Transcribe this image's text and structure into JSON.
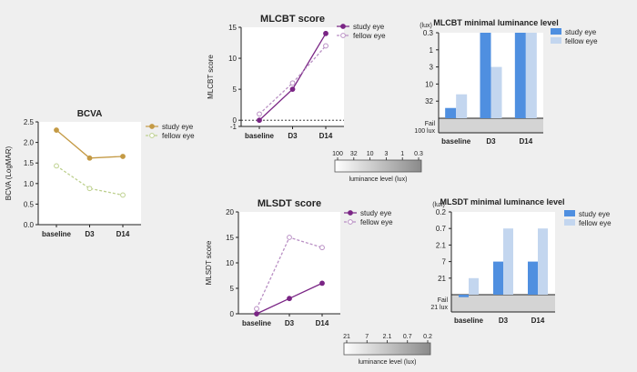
{
  "colors": {
    "bcva_study": "#c49a45",
    "bcva_fellow": "#bdd08e",
    "score_study": "#7a2585",
    "score_fellow": "#b98fc4",
    "bar_study": "#4f8fe0",
    "bar_fellow": "#c3d6ef",
    "fail_band": "#d4d4d4",
    "panel_bg": "#ffffff",
    "ink": "#222222"
  },
  "chart_data": [
    {
      "id": "bcva",
      "type": "line",
      "title": "BCVA",
      "xlabel": "",
      "ylabel": "BCVA (LogMAR)",
      "categories": [
        "baseline",
        "D3",
        "D14"
      ],
      "yticks": [
        "0.0",
        "0.5",
        "1.0",
        "1.5",
        "2.0",
        "2.5"
      ],
      "ylim": [
        0,
        2.5
      ],
      "series": [
        {
          "name": "study eye",
          "values": [
            2.3,
            1.62,
            1.66
          ],
          "style": "solid"
        },
        {
          "name": "fellow eye",
          "values": [
            1.43,
            0.88,
            0.72
          ],
          "style": "dashed"
        }
      ],
      "legend": "right"
    },
    {
      "id": "mlcbt_score",
      "type": "line",
      "title": "MLCBT score",
      "xlabel": "",
      "ylabel": "MLCBT score",
      "categories": [
        "baseline",
        "D3",
        "D14"
      ],
      "yticks": [
        "-1",
        "0",
        "5",
        "10",
        "15"
      ],
      "ylim": [
        -1,
        15
      ],
      "reference_line": 0,
      "series": [
        {
          "name": "study eye",
          "values": [
            0,
            5,
            14
          ],
          "style": "solid"
        },
        {
          "name": "fellow eye",
          "values": [
            1,
            6,
            12
          ],
          "style": "dashed"
        }
      ],
      "legend": "top-right"
    },
    {
      "id": "mlcbt_lum",
      "type": "bar",
      "title": "MLCBT minimal luminance level",
      "unit_label": "(lux)",
      "xlabel": "",
      "ylabel": "",
      "categories": [
        "baseline",
        "D3",
        "D14"
      ],
      "levels": [
        "Fail\n100 lux",
        "32",
        "10",
        "3",
        "1",
        "0.3"
      ],
      "series": [
        {
          "name": "study eye",
          "values": [
            0.6,
            5,
            5
          ]
        },
        {
          "name": "fellow eye",
          "values": [
            1.4,
            3,
            5
          ]
        }
      ],
      "legend": "top-right"
    },
    {
      "id": "mlsdt_score",
      "type": "line",
      "title": "MLSDT score",
      "xlabel": "",
      "ylabel": "MLSDT score",
      "categories": [
        "baseline",
        "D3",
        "D14"
      ],
      "yticks": [
        "0",
        "5",
        "10",
        "15",
        "20"
      ],
      "ylim": [
        0,
        20
      ],
      "series": [
        {
          "name": "study eye",
          "values": [
            0,
            3,
            6
          ],
          "style": "solid"
        },
        {
          "name": "fellow eye",
          "values": [
            1,
            15,
            13
          ],
          "style": "dashed"
        }
      ],
      "legend": "top-right"
    },
    {
      "id": "mlsdt_lum",
      "type": "bar",
      "title": "MLSDT minimal luminance level",
      "unit_label": "(lux)",
      "xlabel": "",
      "ylabel": "",
      "categories": [
        "baseline",
        "D3",
        "D14"
      ],
      "levels": [
        "Fail\n21 lux",
        "21",
        "7",
        "2.1",
        "0.7",
        "0.2"
      ],
      "series": [
        {
          "name": "study eye",
          "values": [
            -0.15,
            2,
            2
          ]
        },
        {
          "name": "fellow eye",
          "values": [
            1,
            4,
            4
          ]
        }
      ],
      "legend": "top-right"
    }
  ],
  "luminance_scales": [
    {
      "id": "scale_top",
      "ticks": [
        "100",
        "32",
        "10",
        "3",
        "1",
        "0.3"
      ],
      "label": "luminance level (lux)"
    },
    {
      "id": "scale_bottom",
      "ticks": [
        "21",
        "7",
        "2.1",
        "0.7",
        "0.2"
      ],
      "label": "luminance level (lux)"
    }
  ]
}
